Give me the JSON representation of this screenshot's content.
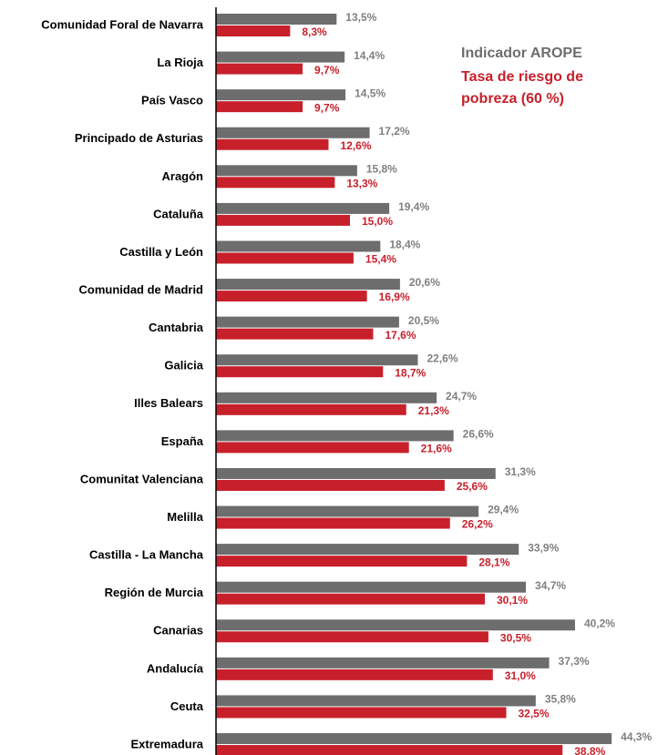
{
  "chart_data": {
    "type": "bar",
    "orientation": "horizontal",
    "categories": [
      "Comunidad Foral de Navarra",
      "La Rioja",
      "País Vasco",
      "Principado de Asturias",
      "Aragón",
      "Cataluña",
      "Castilla y León",
      "Comunidad de Madrid",
      "Cantabria",
      "Galicia",
      "Illes Balears",
      "España",
      "Comunitat Valenciana",
      "Melilla",
      "Castilla - La Mancha",
      "Región de Murcia",
      "Canarias",
      "Andalucía",
      "Ceuta",
      "Extremadura"
    ],
    "series": [
      {
        "name": "Indicador AROPE",
        "color": "#6d6d6d",
        "values": [
          13.5,
          14.4,
          14.5,
          17.2,
          15.8,
          19.4,
          18.4,
          20.6,
          20.5,
          22.6,
          24.7,
          26.6,
          31.3,
          29.4,
          33.9,
          34.7,
          40.2,
          37.3,
          35.8,
          44.3
        ],
        "value_labels": [
          "13,5%",
          "14,4%",
          "14,5%",
          "17,2%",
          "15,8%",
          "19,4%",
          "18,4%",
          "20,6%",
          "20,5%",
          "22,6%",
          "24,7%",
          "26,6%",
          "31,3%",
          "29,4%",
          "33,9%",
          "34,7%",
          "40,2%",
          "37,3%",
          "35,8%",
          "44,3%"
        ]
      },
      {
        "name": "Tasa de riesgo de pobreza (60 %)",
        "color": "#c8202b",
        "values": [
          8.3,
          9.7,
          9.7,
          12.6,
          13.3,
          15.0,
          15.4,
          16.9,
          17.6,
          18.7,
          21.3,
          21.6,
          25.6,
          26.2,
          28.1,
          30.1,
          30.5,
          31.0,
          32.5,
          38.8
        ],
        "value_labels": [
          "8,3%",
          "9,7%",
          "9,7%",
          "12,6%",
          "13,3%",
          "15,0%",
          "15,4%",
          "16,9%",
          "17,6%",
          "18,7%",
          "21,3%",
          "21,6%",
          "25,6%",
          "26,2%",
          "28,1%",
          "30,1%",
          "30,5%",
          "31,0%",
          "32,5%",
          "38,8%"
        ]
      }
    ]
  }
}
